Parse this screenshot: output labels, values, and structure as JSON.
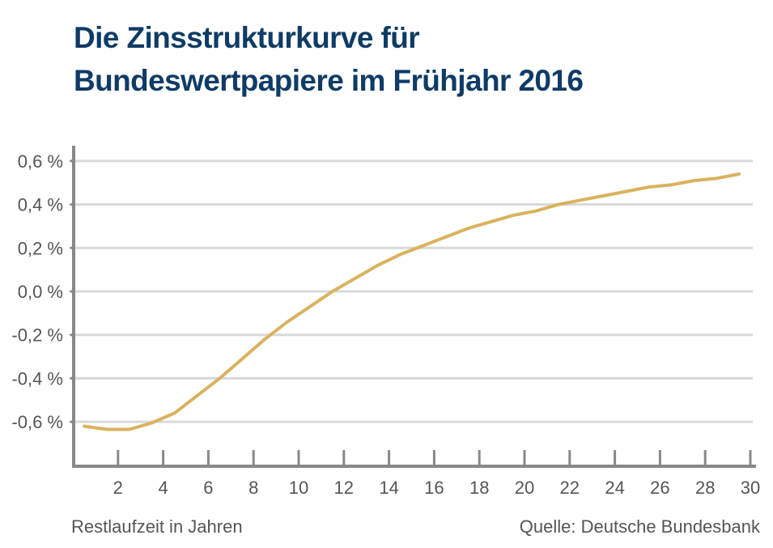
{
  "chart_data": {
    "type": "line",
    "title": "Die Zinsstrukturkurve für Bundeswertpapiere im Frühjahr 2016",
    "title_lines": [
      "Die Zinsstrukturkurve für",
      "Bundeswertpapiere im Frühjahr 2016"
    ],
    "xlabel": "Restlaufzeit in Jahren",
    "ylabel": "",
    "source": "Quelle: Deutsche Bundesbank",
    "xlim": [
      0,
      30.5
    ],
    "ylim": [
      -0.8,
      0.7
    ],
    "grid": true,
    "x_ticks": [
      2,
      4,
      6,
      8,
      10,
      12,
      14,
      16,
      18,
      20,
      22,
      24,
      26,
      28,
      30
    ],
    "x_tick_labels": [
      "2",
      "4",
      "6",
      "8",
      "10",
      "12",
      "14",
      "16",
      "18",
      "20",
      "22",
      "24",
      "26",
      "28",
      "30"
    ],
    "y_ticks": [
      0.6,
      0.4,
      0.2,
      0.0,
      -0.2,
      -0.4,
      -0.6
    ],
    "y_tick_labels": [
      "0,6 %",
      "0,4 %",
      "0,2 %",
      "0,0 %",
      "-0,2 %",
      "-0,4 %",
      "-0,6 %"
    ],
    "series": [
      {
        "name": "Zinsstrukturkurve",
        "color": "#d9b25f",
        "x": [
          0.5,
          1.5,
          2.5,
          3.5,
          4.5,
          5.5,
          6.5,
          7.5,
          8.5,
          9.5,
          10.5,
          11.5,
          12.5,
          13.5,
          14.5,
          15.5,
          16.5,
          17.5,
          18.5,
          19.5,
          20.5,
          21.5,
          22.5,
          23.5,
          24.5,
          25.5,
          26.5,
          27.5,
          28.5,
          29.5
        ],
        "y": [
          -0.62,
          -0.635,
          -0.635,
          -0.605,
          -0.56,
          -0.48,
          -0.4,
          -0.31,
          -0.22,
          -0.14,
          -0.07,
          0.0,
          0.06,
          0.12,
          0.17,
          0.21,
          0.25,
          0.29,
          0.32,
          0.35,
          0.37,
          0.4,
          0.42,
          0.44,
          0.46,
          0.48,
          0.49,
          0.51,
          0.52,
          0.54
        ]
      }
    ],
    "colors": {
      "title": "#0f3b66",
      "axis": "#888888",
      "grid": "#d9d9d9",
      "text": "#555555"
    }
  }
}
